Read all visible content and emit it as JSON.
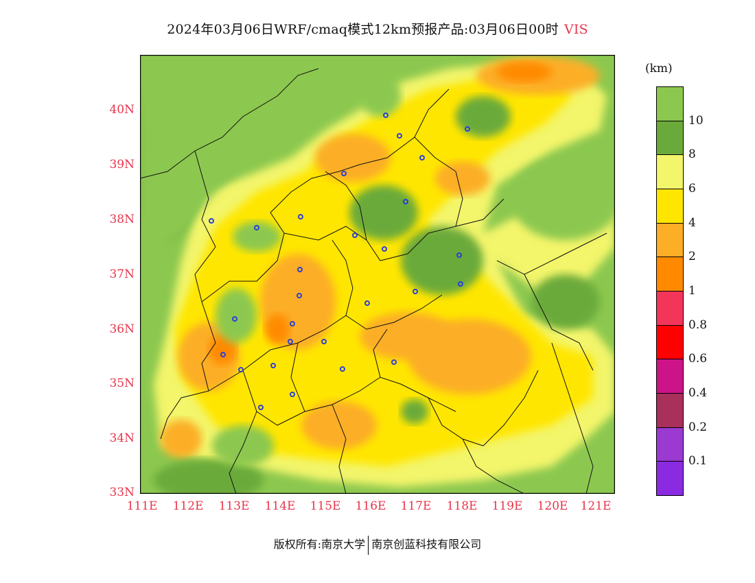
{
  "title": "2024年03月06日WRF/cmaq模式12km预报产品:03月06日00时",
  "variable": "VIS",
  "unit": "(km)",
  "lat_labels": [
    "40N",
    "39N",
    "38N",
    "37N",
    "36N",
    "35N",
    "34N",
    "33N"
  ],
  "lon_labels": [
    "111E",
    "112E",
    "113E",
    "114E",
    "115E",
    "116E",
    "117E",
    "118E",
    "119E",
    "120E",
    "121E"
  ],
  "colorbar": [
    {
      "label": "",
      "color": "#8cc84f"
    },
    {
      "label": "10",
      "color": "#6aaa3a"
    },
    {
      "label": "8",
      "color": "#f3f56b"
    },
    {
      "label": "6",
      "color": "#ffe600"
    },
    {
      "label": "4",
      "color": "#fcae27"
    },
    {
      "label": "2",
      "color": "#ff8a00"
    },
    {
      "label": "1",
      "color": "#f3355a"
    },
    {
      "label": "0.8",
      "color": "#ff0000"
    },
    {
      "label": "0.6",
      "color": "#cc1488"
    },
    {
      "label": "0.4",
      "color": "#a8305a"
    },
    {
      "label": "0.2",
      "color": "#9a3ad0"
    },
    {
      "label": "0.1",
      "color": "#8a2be2"
    }
  ],
  "copyright_left": "版权所有:南京大学",
  "copyright_right": "南京创蓝科技有限公司"
}
